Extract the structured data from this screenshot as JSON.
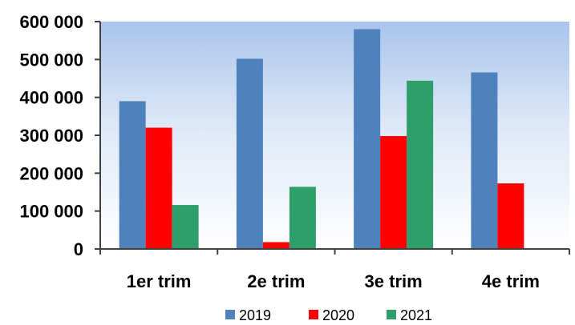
{
  "chart_data": {
    "type": "bar",
    "categories": [
      "1er trim",
      "2e trim",
      "3e trim",
      "4e trim"
    ],
    "series": [
      {
        "name": "2019",
        "color": "#4f81bd",
        "values": [
          390000,
          502000,
          580000,
          466000
        ]
      },
      {
        "name": "2020",
        "color": "#ff0000",
        "values": [
          320000,
          18000,
          298000,
          173000
        ]
      },
      {
        "name": "2021",
        "color": "#2e9e6a",
        "values": [
          116000,
          164000,
          444000,
          null
        ]
      }
    ],
    "yticks": [
      "0",
      "100 000",
      "200 000",
      "300 000",
      "400 000",
      "500 000",
      "600 000"
    ],
    "ylim": [
      0,
      600000
    ],
    "legend_position": "bottom",
    "plot_background": "gradient-blue-to-white",
    "title": "",
    "xlabel": "",
    "ylabel": ""
  }
}
